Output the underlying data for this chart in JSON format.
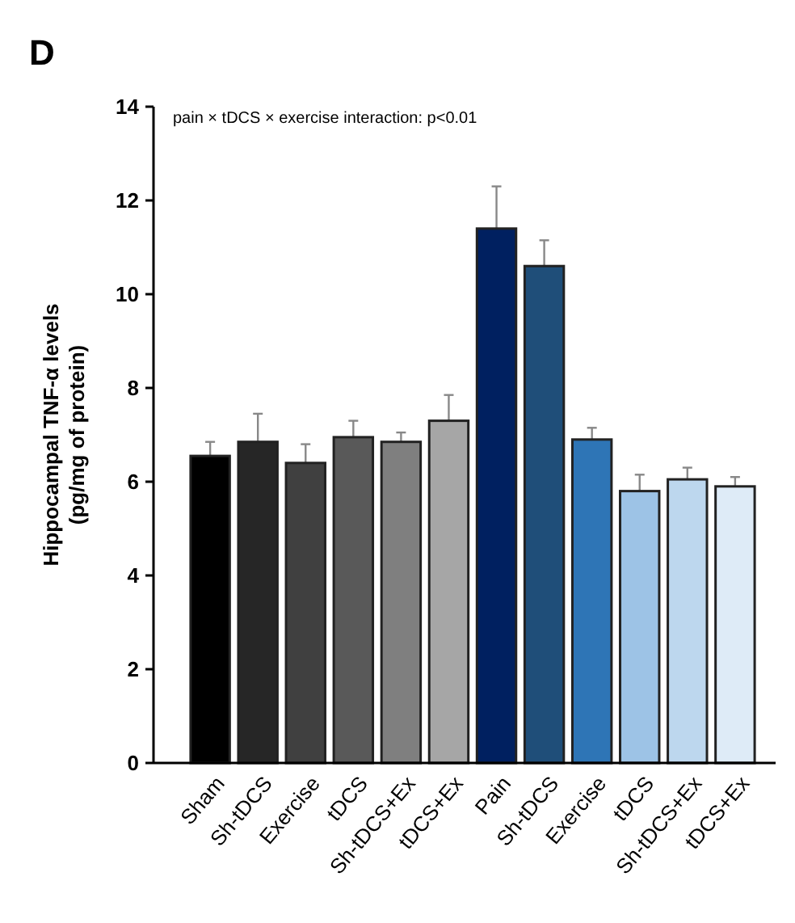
{
  "chart_data": {
    "type": "bar",
    "title": "D",
    "ylabel": "Hippocampal TNF-α levels\n(pg/mg of protein)",
    "annotations": [
      "pain × tDCS × exercise interaction: p<0.01"
    ],
    "categories": [
      "Sham",
      "Sh-tDCS",
      "Exercise",
      "tDCS",
      "Sh-tDCS+Ex",
      "tDCS+Ex",
      "Pain",
      "Sh-tDCS",
      "Exercise",
      "tDCS",
      "Sh-tDCS+Ex",
      "tDCS+Ex"
    ],
    "values": [
      6.55,
      6.85,
      6.4,
      6.95,
      6.85,
      7.3,
      11.4,
      10.6,
      6.9,
      5.8,
      6.05,
      5.9
    ],
    "errors": [
      0.3,
      0.6,
      0.4,
      0.35,
      0.2,
      0.55,
      0.9,
      0.55,
      0.25,
      0.35,
      0.25,
      0.2
    ],
    "colors": [
      "#000000",
      "#262626",
      "#404040",
      "#595959",
      "#7f7f7f",
      "#a6a6a6",
      "#002060",
      "#1f4e79",
      "#2e75b6",
      "#9dc3e6",
      "#bdd7ee",
      "#deebf7"
    ],
    "ylim": [
      0,
      14
    ],
    "yticks": [
      0,
      2,
      4,
      6,
      8,
      10,
      12,
      14
    ],
    "grid": false
  }
}
